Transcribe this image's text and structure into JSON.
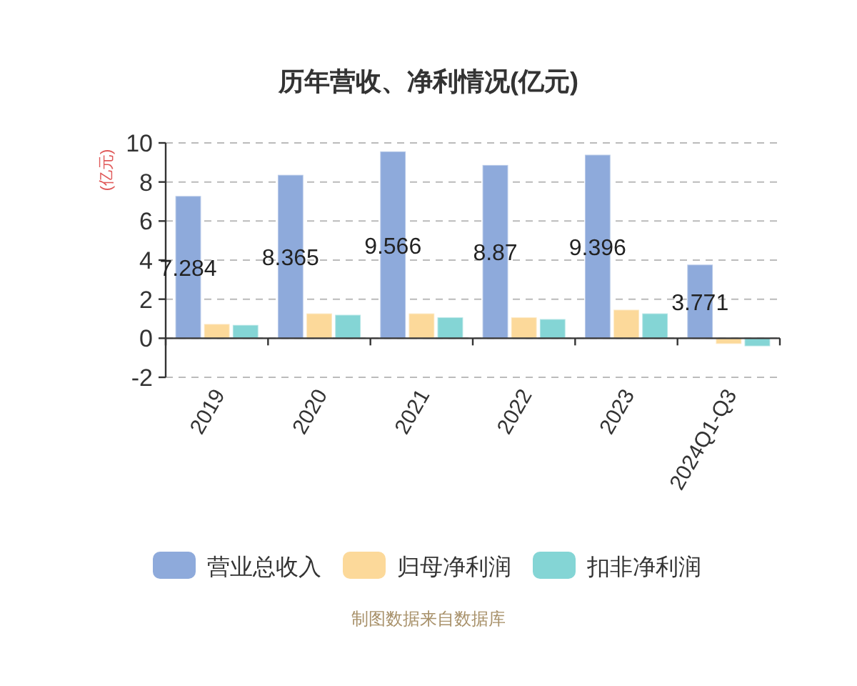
{
  "chart_data": {
    "type": "bar",
    "title": "历年营收、净利情况(亿元)",
    "ylabel": "(亿元)",
    "categories": [
      "2019",
      "2020",
      "2021",
      "2022",
      "2023",
      "2024Q1-Q3"
    ],
    "series": [
      {
        "name": "营业总收入",
        "color": "#8eaadb",
        "values": [
          7.284,
          8.365,
          9.566,
          8.87,
          9.396,
          3.771
        ],
        "value_labels": [
          "7.284",
          "8.365",
          "9.566",
          "8.87",
          "9.396",
          "3.771"
        ]
      },
      {
        "name": "归母净利润",
        "color": "#fcd99a",
        "values": [
          0.73,
          1.27,
          1.27,
          1.07,
          1.46,
          -0.29
        ]
      },
      {
        "name": "扣非净利润",
        "color": "#84d5d5",
        "values": [
          0.68,
          1.2,
          1.07,
          0.98,
          1.27,
          -0.41
        ]
      }
    ],
    "ylim": [
      -2,
      10
    ],
    "yticks": [
      -2,
      0,
      2,
      4,
      6,
      8,
      10
    ],
    "grid": "y",
    "legend": "bottom",
    "annotations": [
      "制图数据来自数据库"
    ]
  }
}
